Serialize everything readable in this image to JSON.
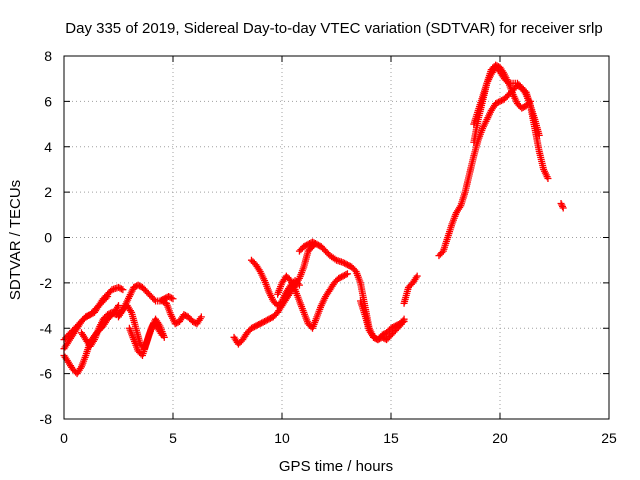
{
  "chart_data": {
    "type": "scatter",
    "title": "Day 335 of 2019, Sidereal Day-to-day VTEC variation (SDTVAR) for receiver srlp",
    "xlabel": "GPS time / hours",
    "ylabel": "SDTVAR / TECUs",
    "xlim": [
      0,
      25
    ],
    "ylim": [
      -8,
      8
    ],
    "xticks": [
      0,
      5,
      10,
      15,
      20,
      25
    ],
    "yticks": [
      -8,
      -6,
      -4,
      -2,
      0,
      2,
      4,
      6,
      8
    ],
    "grid": true,
    "marker": "+",
    "color": "#ff0000",
    "series": [
      {
        "name": "s1",
        "x": [
          0.0,
          0.2,
          0.4,
          0.6,
          0.8,
          1.0,
          1.2,
          1.5,
          1.8,
          2.0,
          2.3,
          2.5
        ],
        "y": [
          -5.2,
          -5.5,
          -5.8,
          -6.0,
          -5.7,
          -5.2,
          -4.6,
          -4.2,
          -3.9,
          -3.6,
          -3.3,
          -3.0
        ]
      },
      {
        "name": "s2",
        "x": [
          0.0,
          0.2,
          0.4,
          0.6,
          0.8,
          1.0,
          1.2,
          1.4,
          1.6,
          1.8,
          2.0,
          2.2,
          2.5,
          2.7
        ],
        "y": [
          -4.5,
          -4.3,
          -4.1,
          -3.9,
          -3.7,
          -3.5,
          -3.4,
          -3.3,
          -3.0,
          -2.7,
          -2.5,
          -2.3,
          -2.2,
          -2.3
        ]
      },
      {
        "name": "s3",
        "x": [
          0.0,
          0.2,
          0.4,
          0.6,
          0.8,
          1.0,
          1.2,
          1.4,
          1.6,
          1.8,
          2.0
        ],
        "y": [
          -4.9,
          -4.6,
          -4.3,
          -4.0,
          -3.7,
          -3.5,
          -3.4,
          -3.2,
          -3.0,
          -2.8,
          -2.6
        ]
      },
      {
        "name": "s4",
        "x": [
          0.8,
          1.0,
          1.2,
          1.4,
          1.6,
          1.8,
          2.0,
          2.2,
          2.4,
          2.6,
          2.8,
          3.0,
          3.2,
          3.4,
          3.6,
          3.8,
          4.0,
          4.2,
          4.4,
          4.6,
          4.8,
          5.0
        ],
        "y": [
          -4.2,
          -4.5,
          -4.8,
          -4.5,
          -4.0,
          -3.6,
          -3.4,
          -3.3,
          -3.4,
          -3.3,
          -3.0,
          -2.6,
          -2.2,
          -2.1,
          -2.2,
          -2.4,
          -2.6,
          -2.8,
          -2.8,
          -2.7,
          -2.6,
          -2.7
        ]
      },
      {
        "name": "s5",
        "x": [
          2.5,
          2.7,
          2.9,
          3.1,
          3.3,
          3.5,
          3.7,
          3.9,
          4.1,
          4.3,
          4.5
        ],
        "y": [
          -3.5,
          -3.2,
          -3.0,
          -3.3,
          -4.0,
          -4.7,
          -4.9,
          -4.3,
          -3.8,
          -4.0,
          -4.3
        ]
      },
      {
        "name": "s6",
        "x": [
          3.0,
          3.2,
          3.4,
          3.6,
          3.8,
          4.0,
          4.2,
          4.4,
          4.6
        ],
        "y": [
          -4.0,
          -4.5,
          -5.0,
          -5.2,
          -4.6,
          -4.0,
          -3.6,
          -3.9,
          -4.4
        ]
      },
      {
        "name": "s7",
        "x": [
          4.5,
          4.7,
          4.9,
          5.1,
          5.3,
          5.5,
          5.7,
          5.9,
          6.1,
          6.3
        ],
        "y": [
          -2.8,
          -2.9,
          -3.4,
          -3.8,
          -3.7,
          -3.4,
          -3.5,
          -3.7,
          -3.8,
          -3.5
        ]
      },
      {
        "name": "s8",
        "x": [
          7.8,
          8.0,
          8.2,
          8.4,
          8.6,
          8.8,
          9.0,
          9.2,
          9.4,
          9.6,
          9.8,
          10.0,
          10.2,
          10.4,
          10.6,
          10.8,
          11.0,
          11.2,
          11.5
        ],
        "y": [
          -4.4,
          -4.7,
          -4.5,
          -4.2,
          -4.0,
          -3.9,
          -3.8,
          -3.7,
          -3.6,
          -3.5,
          -3.3,
          -3.0,
          -2.7,
          -2.4,
          -2.1,
          -1.8,
          -1.3,
          -0.6,
          -0.3
        ]
      },
      {
        "name": "s9",
        "x": [
          8.6,
          8.8,
          9.0,
          9.2,
          9.4,
          9.6,
          9.8,
          10.0,
          10.2,
          10.4,
          10.6,
          10.8
        ],
        "y": [
          -1.0,
          -1.2,
          -1.5,
          -1.9,
          -2.4,
          -2.8,
          -3.0,
          -2.8,
          -2.4,
          -2.1,
          -1.9,
          -2.1
        ]
      },
      {
        "name": "s10",
        "x": [
          9.8,
          10.0,
          10.2,
          10.4,
          10.6,
          10.8,
          11.0,
          11.2,
          11.4,
          11.6,
          11.8,
          12.0,
          12.2,
          12.4,
          12.6,
          12.8,
          13.0
        ],
        "y": [
          -2.5,
          -2.0,
          -1.7,
          -1.9,
          -2.3,
          -2.8,
          -3.3,
          -3.8,
          -4.0,
          -3.5,
          -3.0,
          -2.6,
          -2.3,
          -2.0,
          -1.8,
          -1.7,
          -1.6
        ]
      },
      {
        "name": "s11",
        "x": [
          10.8,
          11.0,
          11.2,
          11.4,
          11.6,
          11.8,
          12.0,
          12.2,
          12.5,
          12.8,
          13.0,
          13.2,
          13.4,
          13.6,
          13.8,
          14.0,
          14.2,
          14.4,
          14.6,
          14.8,
          15.0,
          15.2,
          15.4,
          15.6
        ],
        "y": [
          -0.6,
          -0.4,
          -0.3,
          -0.2,
          -0.3,
          -0.4,
          -0.6,
          -0.8,
          -1.0,
          -1.1,
          -1.2,
          -1.3,
          -1.5,
          -2.0,
          -3.0,
          -4.0,
          -4.4,
          -4.5,
          -4.4,
          -4.5,
          -4.3,
          -4.1,
          -3.9,
          -3.6
        ]
      },
      {
        "name": "s12",
        "x": [
          13.6,
          13.8,
          14.0,
          14.2,
          14.4,
          14.6,
          14.8,
          15.0,
          15.2,
          15.4,
          15.6
        ],
        "y": [
          -2.8,
          -3.4,
          -4.1,
          -4.4,
          -4.5,
          -4.3,
          -4.2,
          -4.0,
          -3.9,
          -3.8,
          -3.7
        ]
      },
      {
        "name": "s13",
        "x": [
          15.6,
          15.8,
          16.0,
          16.2
        ],
        "y": [
          -2.9,
          -2.2,
          -2.0,
          -1.7
        ]
      },
      {
        "name": "s14",
        "x": [
          17.2,
          17.4,
          17.6,
          17.8,
          18.0,
          18.2,
          18.4,
          18.6,
          18.8,
          19.0,
          19.2,
          19.4,
          19.6,
          19.8,
          20.0,
          20.2,
          20.4,
          20.6,
          20.8,
          21.0,
          21.2,
          21.4,
          21.6,
          21.8,
          22.0,
          22.2
        ],
        "y": [
          -0.8,
          -0.6,
          0.0,
          0.6,
          1.1,
          1.4,
          2.0,
          2.8,
          3.6,
          4.3,
          4.8,
          5.2,
          5.6,
          5.9,
          6.0,
          6.1,
          6.3,
          6.5,
          6.7,
          6.6,
          6.3,
          5.8,
          4.8,
          3.8,
          3.0,
          2.6
        ]
      },
      {
        "name": "s15",
        "x": [
          18.8,
          19.0,
          19.2,
          19.4,
          19.6,
          19.8,
          20.0,
          20.2,
          20.4,
          20.6,
          20.8,
          21.0,
          21.2,
          21.4
        ],
        "y": [
          4.2,
          5.2,
          6.0,
          6.8,
          7.4,
          7.6,
          7.5,
          7.2,
          6.8,
          6.3,
          5.9,
          5.7,
          5.8,
          6.0
        ]
      },
      {
        "name": "s16",
        "x": [
          18.8,
          19.0,
          19.2,
          19.4,
          19.6,
          19.8,
          20.0,
          20.2,
          20.4,
          20.6,
          20.8,
          21.0,
          21.2,
          21.4,
          21.6,
          21.8
        ],
        "y": [
          5.0,
          5.6,
          6.2,
          6.8,
          7.2,
          7.5,
          7.3,
          7.0,
          6.8,
          6.8,
          6.8,
          6.6,
          6.4,
          5.8,
          5.2,
          4.5
        ]
      },
      {
        "name": "s17",
        "x": [
          22.8,
          22.9
        ],
        "y": [
          1.5,
          1.3
        ]
      }
    ]
  }
}
